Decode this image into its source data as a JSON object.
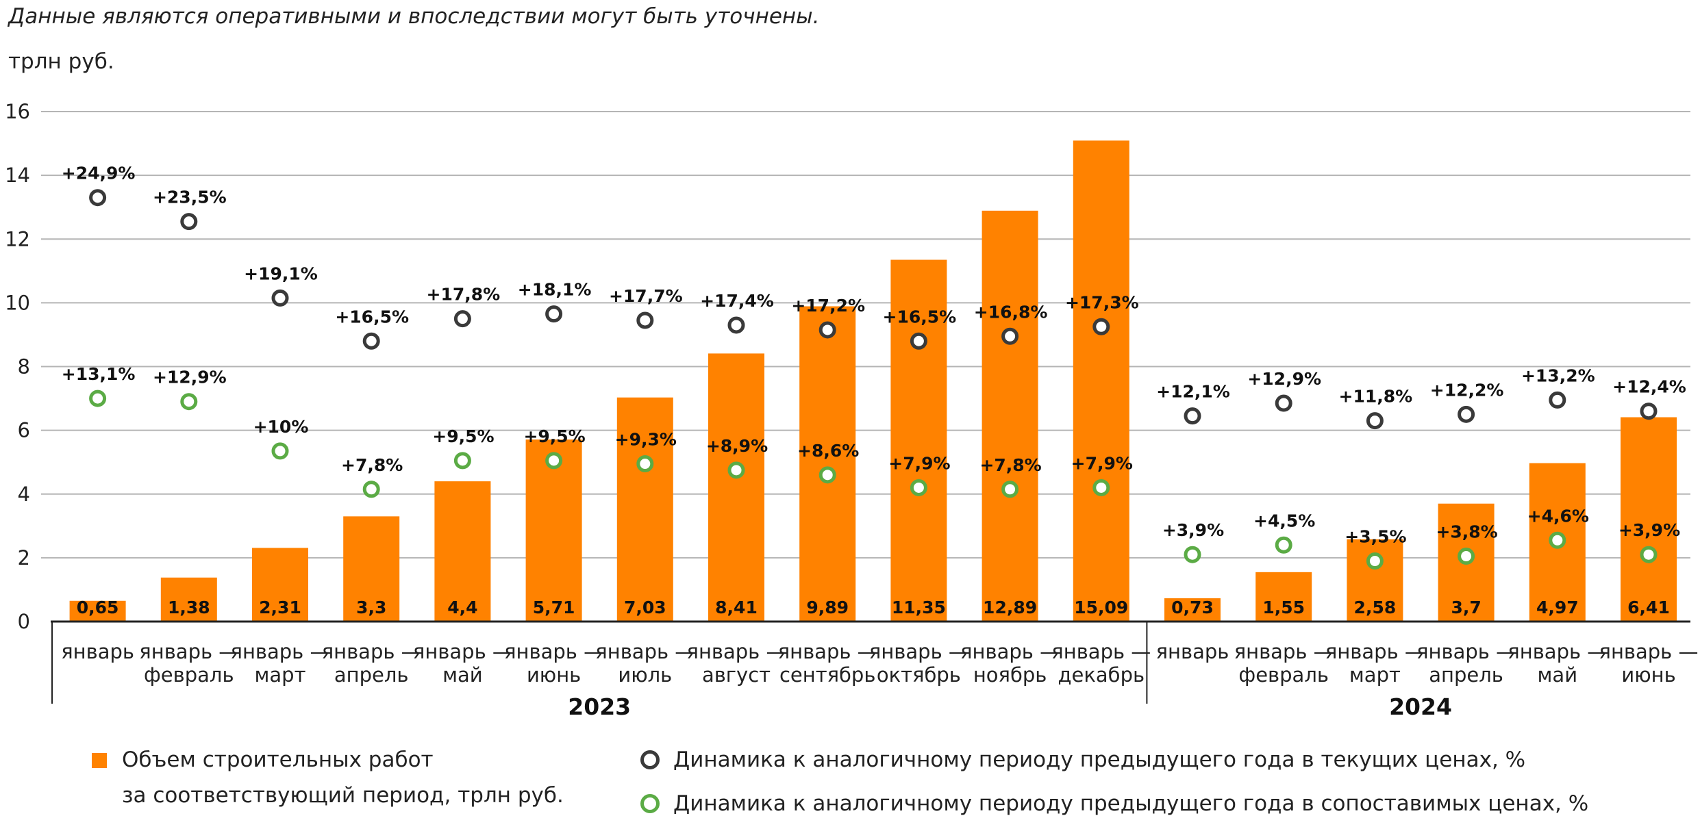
{
  "header": {
    "note": "Данные являются оперативными и впоследствии могут быть уточнены.",
    "unit": "трлн руб."
  },
  "chart_data": {
    "type": "bar",
    "ylim": [
      0,
      16
    ],
    "yticks": [
      "0",
      "2",
      "4",
      "6",
      "8",
      "10",
      "12",
      "14",
      "16"
    ],
    "grid": true,
    "legend_position": "bottom",
    "colors": {
      "bar": "#ff8200",
      "current": "#3a3a3a",
      "comparable": "#5bab45"
    },
    "categories": [
      {
        "line1": "январь",
        "line2": ""
      },
      {
        "line1": "январь —",
        "line2": "февраль"
      },
      {
        "line1": "январь —",
        "line2": "март"
      },
      {
        "line1": "январь —",
        "line2": "апрель"
      },
      {
        "line1": "январь —",
        "line2": "май"
      },
      {
        "line1": "январь —",
        "line2": "июнь"
      },
      {
        "line1": "январь —",
        "line2": "июль"
      },
      {
        "line1": "январь —",
        "line2": "август"
      },
      {
        "line1": "январь —",
        "line2": "сентябрь"
      },
      {
        "line1": "январь —",
        "line2": "октябрь"
      },
      {
        "line1": "январь —",
        "line2": "ноябрь"
      },
      {
        "line1": "январь —",
        "line2": "декабрь"
      },
      {
        "line1": "январь",
        "line2": ""
      },
      {
        "line1": "январь —",
        "line2": "февраль"
      },
      {
        "line1": "январь —",
        "line2": "март"
      },
      {
        "line1": "январь —",
        "line2": "апрель"
      },
      {
        "line1": "январь —",
        "line2": "май"
      },
      {
        "line1": "январь —",
        "line2": "июнь"
      }
    ],
    "groups": [
      {
        "label": "2023",
        "start": 0,
        "end": 11
      },
      {
        "label": "2024",
        "start": 12,
        "end": 17
      }
    ],
    "series": [
      {
        "name": "Объем строительных работ за соответствующий период, трлн руб.",
        "kind": "bar",
        "values": [
          0.65,
          1.38,
          2.31,
          3.3,
          4.4,
          5.71,
          7.03,
          8.41,
          9.89,
          11.35,
          12.89,
          15.09,
          0.73,
          1.55,
          2.58,
          3.7,
          4.97,
          6.41
        ],
        "labels": [
          "0,65",
          "1,38",
          "2,31",
          "3,3",
          "4,4",
          "5,71",
          "7,03",
          "8,41",
          "9,89",
          "11,35",
          "12,89",
          "15,09",
          "0,73",
          "1,55",
          "2,58",
          "3,7",
          "4,97",
          "6,41"
        ]
      },
      {
        "name": "Динамика к аналогичному периоду предыдущего года в текущих ценах, %",
        "kind": "points",
        "values": [
          13.3,
          12.55,
          10.15,
          8.8,
          9.5,
          9.65,
          9.45,
          9.3,
          9.15,
          8.8,
          8.95,
          9.25,
          6.45,
          6.85,
          6.3,
          6.5,
          6.95,
          6.6
        ],
        "labels": [
          "+24,9%",
          "+23,5%",
          "+19,1%",
          "+16,5%",
          "+17,8%",
          "+18,1%",
          "+17,7%",
          "+17,4%",
          "+17,2%",
          "+16,5%",
          "+16,8%",
          "+17,3%",
          "+12,1%",
          "+12,9%",
          "+11,8%",
          "+12,2%",
          "+13,2%",
          "+12,4%"
        ]
      },
      {
        "name": "Динамика к аналогичному периоду предыдущего года в сопоставимых ценах, %",
        "kind": "points",
        "values": [
          7.0,
          6.9,
          5.35,
          4.15,
          5.05,
          5.05,
          4.95,
          4.75,
          4.6,
          4.2,
          4.15,
          4.2,
          2.1,
          2.4,
          1.9,
          2.05,
          2.55,
          2.1
        ],
        "labels": [
          "+13,1%",
          "+12,9%",
          "+10%",
          "+7,8%",
          "+9,5%",
          "+9,5%",
          "+9,3%",
          "+8,9%",
          "+8,6%",
          "+7,9%",
          "+7,8%",
          "+7,9%",
          "+3,9%",
          "+4,5%",
          "+3,5%",
          "+3,8%",
          "+4,6%",
          "+3,9%"
        ]
      }
    ]
  },
  "legend": {
    "bar_line1": "Объем строительных работ",
    "bar_line2": "за соответствующий период, трлн руб.",
    "current": "Динамика к аналогичному периоду предыдущего года в текущих ценах, %",
    "comparable": "Динамика к аналогичному периоду предыдущего года в сопоставимых ценах, %"
  }
}
